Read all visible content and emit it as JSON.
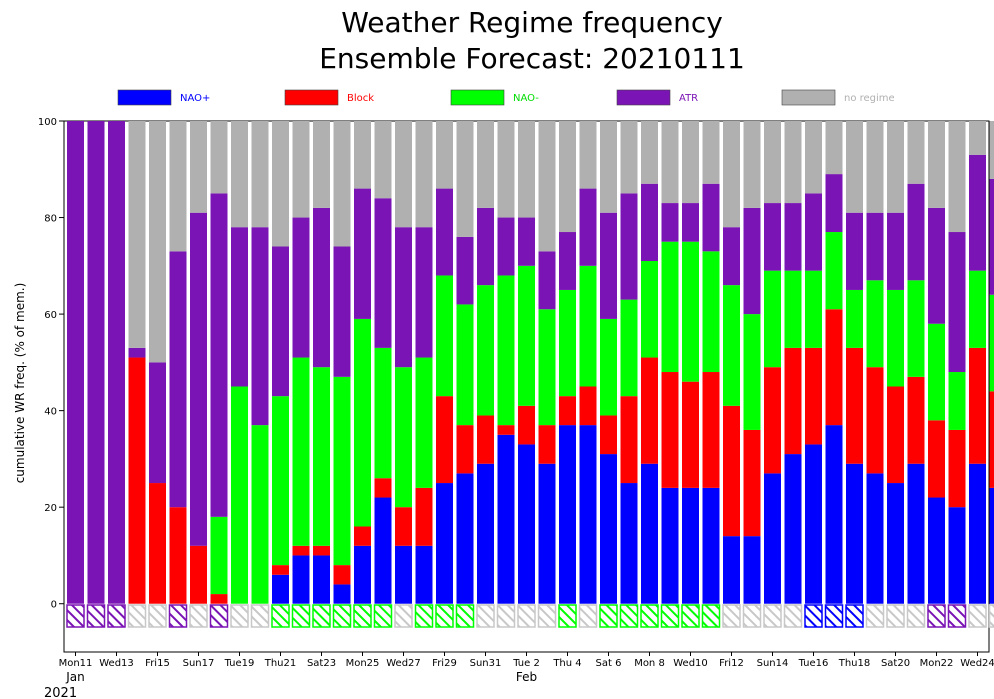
{
  "title_line1": "Weather Regime frequency",
  "title_line2": "Ensemble Forecast: 20210111",
  "colors": {
    "NAO+": "#0000ff",
    "Block": "#ff0000",
    "NAO-": "#00ff00",
    "ATR": "#7a14b4",
    "no regime": "#b0b0b0"
  },
  "chart_data": {
    "type": "bar",
    "stacked": true,
    "ylabel": "cumulative WR freq. (% of mem.)",
    "ylim": [
      -10,
      100
    ],
    "yticks": [
      0,
      20,
      40,
      60,
      80,
      100
    ],
    "legend": [
      {
        "name": "NAO+",
        "color": "#0000ff",
        "text_color": "#0000ff"
      },
      {
        "name": "Block",
        "color": "#ff0000",
        "text_color": "#ff0000"
      },
      {
        "name": "NAO-",
        "color": "#00ff00",
        "text_color": "#00dd00"
      },
      {
        "name": "ATR",
        "color": "#7a14b4",
        "text_color": "#7a14b4"
      },
      {
        "name": "no regime",
        "color": "#b0b0b0",
        "text_color": "#b0b0b0"
      }
    ],
    "legend_position": "top",
    "x_tick_labels": [
      {
        "index": 0,
        "label": "Mon11",
        "color": "#000000"
      },
      {
        "index": 2,
        "label": "Wed13",
        "color": "#000000"
      },
      {
        "index": 4,
        "label": "Fri15",
        "color": "#000000"
      },
      {
        "index": 6,
        "label": "Sun17",
        "color": "#ff0000"
      },
      {
        "index": 8,
        "label": "Tue19",
        "color": "#000000"
      },
      {
        "index": 10,
        "label": "Thu21",
        "color": "#000000"
      },
      {
        "index": 12,
        "label": "Sat23",
        "color": "#000000"
      },
      {
        "index": 14,
        "label": "Mon25",
        "color": "#000000"
      },
      {
        "index": 16,
        "label": "Wed27",
        "color": "#000000"
      },
      {
        "index": 18,
        "label": "Fri29",
        "color": "#000000"
      },
      {
        "index": 20,
        "label": "Sun31",
        "color": "#ff0000"
      },
      {
        "index": 22,
        "label": "Tue 2",
        "color": "#000000"
      },
      {
        "index": 24,
        "label": "Thu 4",
        "color": "#000000"
      },
      {
        "index": 26,
        "label": "Sat 6",
        "color": "#000000"
      },
      {
        "index": 28,
        "label": "Mon 8",
        "color": "#000000"
      },
      {
        "index": 30,
        "label": "Wed10",
        "color": "#000000"
      },
      {
        "index": 32,
        "label": "Fri12",
        "color": "#000000"
      },
      {
        "index": 34,
        "label": "Sun14",
        "color": "#ff0000"
      },
      {
        "index": 36,
        "label": "Tue16",
        "color": "#000000"
      },
      {
        "index": 38,
        "label": "Thu18",
        "color": "#000000"
      },
      {
        "index": 40,
        "label": "Sat20",
        "color": "#000000"
      },
      {
        "index": 42,
        "label": "Mon22",
        "color": "#000000"
      },
      {
        "index": 44,
        "label": "Wed24",
        "color": "#000000"
      }
    ],
    "month_labels": [
      {
        "index": 0,
        "label": "Jan"
      },
      {
        "index": 22,
        "label": "Feb"
      }
    ],
    "year_label": "2021",
    "series_order": [
      "NAO+",
      "Block",
      "NAO-",
      "ATR",
      "no regime"
    ],
    "days": [
      {
        "NAO+": 0,
        "Block": 0,
        "NAO-": 0,
        "ATR": 100,
        "no regime": 0,
        "dominant": "ATR"
      },
      {
        "NAO+": 0,
        "Block": 0,
        "NAO-": 0,
        "ATR": 100,
        "no regime": 0,
        "dominant": "ATR"
      },
      {
        "NAO+": 0,
        "Block": 0,
        "NAO-": 0,
        "ATR": 100,
        "no regime": 0,
        "dominant": "ATR"
      },
      {
        "NAO+": 0,
        "Block": 51,
        "NAO-": 0,
        "ATR": 2,
        "no regime": 47,
        "dominant": "no regime"
      },
      {
        "NAO+": 0,
        "Block": 25,
        "NAO-": 0,
        "ATR": 25,
        "no regime": 50,
        "dominant": "no regime"
      },
      {
        "NAO+": 0,
        "Block": 20,
        "NAO-": 0,
        "ATR": 53,
        "no regime": 27,
        "dominant": "ATR"
      },
      {
        "NAO+": 0,
        "Block": 12,
        "NAO-": 0,
        "ATR": 69,
        "no regime": 19,
        "dominant": "no regime"
      },
      {
        "NAO+": 0,
        "Block": 2,
        "NAO-": 16,
        "ATR": 67,
        "no regime": 15,
        "dominant": "ATR"
      },
      {
        "NAO+": 0,
        "Block": 0,
        "NAO-": 45,
        "ATR": 33,
        "no regime": 22,
        "dominant": "no regime"
      },
      {
        "NAO+": 0,
        "Block": 0,
        "NAO-": 37,
        "ATR": 41,
        "no regime": 22,
        "dominant": "no regime"
      },
      {
        "NAO+": 6,
        "Block": 2,
        "NAO-": 35,
        "ATR": 31,
        "no regime": 26,
        "dominant": "NAO-"
      },
      {
        "NAO+": 10,
        "Block": 2,
        "NAO-": 39,
        "ATR": 29,
        "no regime": 20,
        "dominant": "NAO-"
      },
      {
        "NAO+": 10,
        "Block": 2,
        "NAO-": 37,
        "ATR": 33,
        "no regime": 18,
        "dominant": "NAO-"
      },
      {
        "NAO+": 4,
        "Block": 4,
        "NAO-": 39,
        "ATR": 27,
        "no regime": 26,
        "dominant": "NAO-"
      },
      {
        "NAO+": 12,
        "Block": 4,
        "NAO-": 43,
        "ATR": 27,
        "no regime": 14,
        "dominant": "NAO-"
      },
      {
        "NAO+": 22,
        "Block": 4,
        "NAO-": 27,
        "ATR": 31,
        "no regime": 16,
        "dominant": "NAO-"
      },
      {
        "NAO+": 12,
        "Block": 8,
        "NAO-": 29,
        "ATR": 29,
        "no regime": 22,
        "dominant": "no regime"
      },
      {
        "NAO+": 12,
        "Block": 12,
        "NAO-": 27,
        "ATR": 27,
        "no regime": 22,
        "dominant": "NAO-"
      },
      {
        "NAO+": 25,
        "Block": 18,
        "NAO-": 25,
        "ATR": 18,
        "no regime": 14,
        "dominant": "NAO-"
      },
      {
        "NAO+": 27,
        "Block": 10,
        "NAO-": 25,
        "ATR": 14,
        "no regime": 24,
        "dominant": "NAO-"
      },
      {
        "NAO+": 29,
        "Block": 10,
        "NAO-": 27,
        "ATR": 16,
        "no regime": 18,
        "dominant": "no regime"
      },
      {
        "NAO+": 35,
        "Block": 2,
        "NAO-": 31,
        "ATR": 12,
        "no regime": 20,
        "dominant": "no regime"
      },
      {
        "NAO+": 33,
        "Block": 8,
        "NAO-": 29,
        "ATR": 10,
        "no regime": 20,
        "dominant": "no regime"
      },
      {
        "NAO+": 29,
        "Block": 8,
        "NAO-": 24,
        "ATR": 12,
        "no regime": 27,
        "dominant": "no regime"
      },
      {
        "NAO+": 37,
        "Block": 6,
        "NAO-": 22,
        "ATR": 12,
        "no regime": 23,
        "dominant": "NAO-"
      },
      {
        "NAO+": 37,
        "Block": 8,
        "NAO-": 25,
        "ATR": 16,
        "no regime": 14,
        "dominant": "no regime"
      },
      {
        "NAO+": 31,
        "Block": 8,
        "NAO-": 20,
        "ATR": 22,
        "no regime": 19,
        "dominant": "NAO-"
      },
      {
        "NAO+": 25,
        "Block": 18,
        "NAO-": 20,
        "ATR": 22,
        "no regime": 15,
        "dominant": "NAO-"
      },
      {
        "NAO+": 29,
        "Block": 22,
        "NAO-": 20,
        "ATR": 16,
        "no regime": 13,
        "dominant": "NAO-"
      },
      {
        "NAO+": 24,
        "Block": 24,
        "NAO-": 27,
        "ATR": 8,
        "no regime": 17,
        "dominant": "NAO-"
      },
      {
        "NAO+": 24,
        "Block": 22,
        "NAO-": 29,
        "ATR": 8,
        "no regime": 17,
        "dominant": "NAO-"
      },
      {
        "NAO+": 24,
        "Block": 24,
        "NAO-": 25,
        "ATR": 14,
        "no regime": 13,
        "dominant": "NAO-"
      },
      {
        "NAO+": 14,
        "Block": 27,
        "NAO-": 25,
        "ATR": 12,
        "no regime": 22,
        "dominant": "no regime"
      },
      {
        "NAO+": 14,
        "Block": 22,
        "NAO-": 24,
        "ATR": 22,
        "no regime": 18,
        "dominant": "no regime"
      },
      {
        "NAO+": 27,
        "Block": 22,
        "NAO-": 20,
        "ATR": 14,
        "no regime": 17,
        "dominant": "no regime"
      },
      {
        "NAO+": 31,
        "Block": 22,
        "NAO-": 16,
        "ATR": 14,
        "no regime": 17,
        "dominant": "no regime"
      },
      {
        "NAO+": 33,
        "Block": 20,
        "NAO-": 16,
        "ATR": 16,
        "no regime": 15,
        "dominant": "NAO+"
      },
      {
        "NAO+": 37,
        "Block": 24,
        "NAO-": 16,
        "ATR": 12,
        "no regime": 11,
        "dominant": "NAO+"
      },
      {
        "NAO+": 29,
        "Block": 24,
        "NAO-": 12,
        "ATR": 16,
        "no regime": 19,
        "dominant": "NAO+"
      },
      {
        "NAO+": 27,
        "Block": 22,
        "NAO-": 18,
        "ATR": 14,
        "no regime": 19,
        "dominant": "no regime"
      },
      {
        "NAO+": 25,
        "Block": 20,
        "NAO-": 20,
        "ATR": 16,
        "no regime": 19,
        "dominant": "no regime"
      },
      {
        "NAO+": 29,
        "Block": 18,
        "NAO-": 20,
        "ATR": 20,
        "no regime": 13,
        "dominant": "no regime"
      },
      {
        "NAO+": 22,
        "Block": 16,
        "NAO-": 20,
        "ATR": 24,
        "no regime": 18,
        "dominant": "ATR"
      },
      {
        "NAO+": 20,
        "Block": 16,
        "NAO-": 12,
        "ATR": 29,
        "no regime": 23,
        "dominant": "ATR"
      },
      {
        "NAO+": 29,
        "Block": 24,
        "NAO-": 16,
        "ATR": 24,
        "no regime": 7,
        "dominant": "no regime"
      },
      {
        "NAO+": 24,
        "Block": 20,
        "NAO-": 20,
        "ATR": 24,
        "no regime": 12,
        "dominant": "no regime"
      }
    ]
  }
}
